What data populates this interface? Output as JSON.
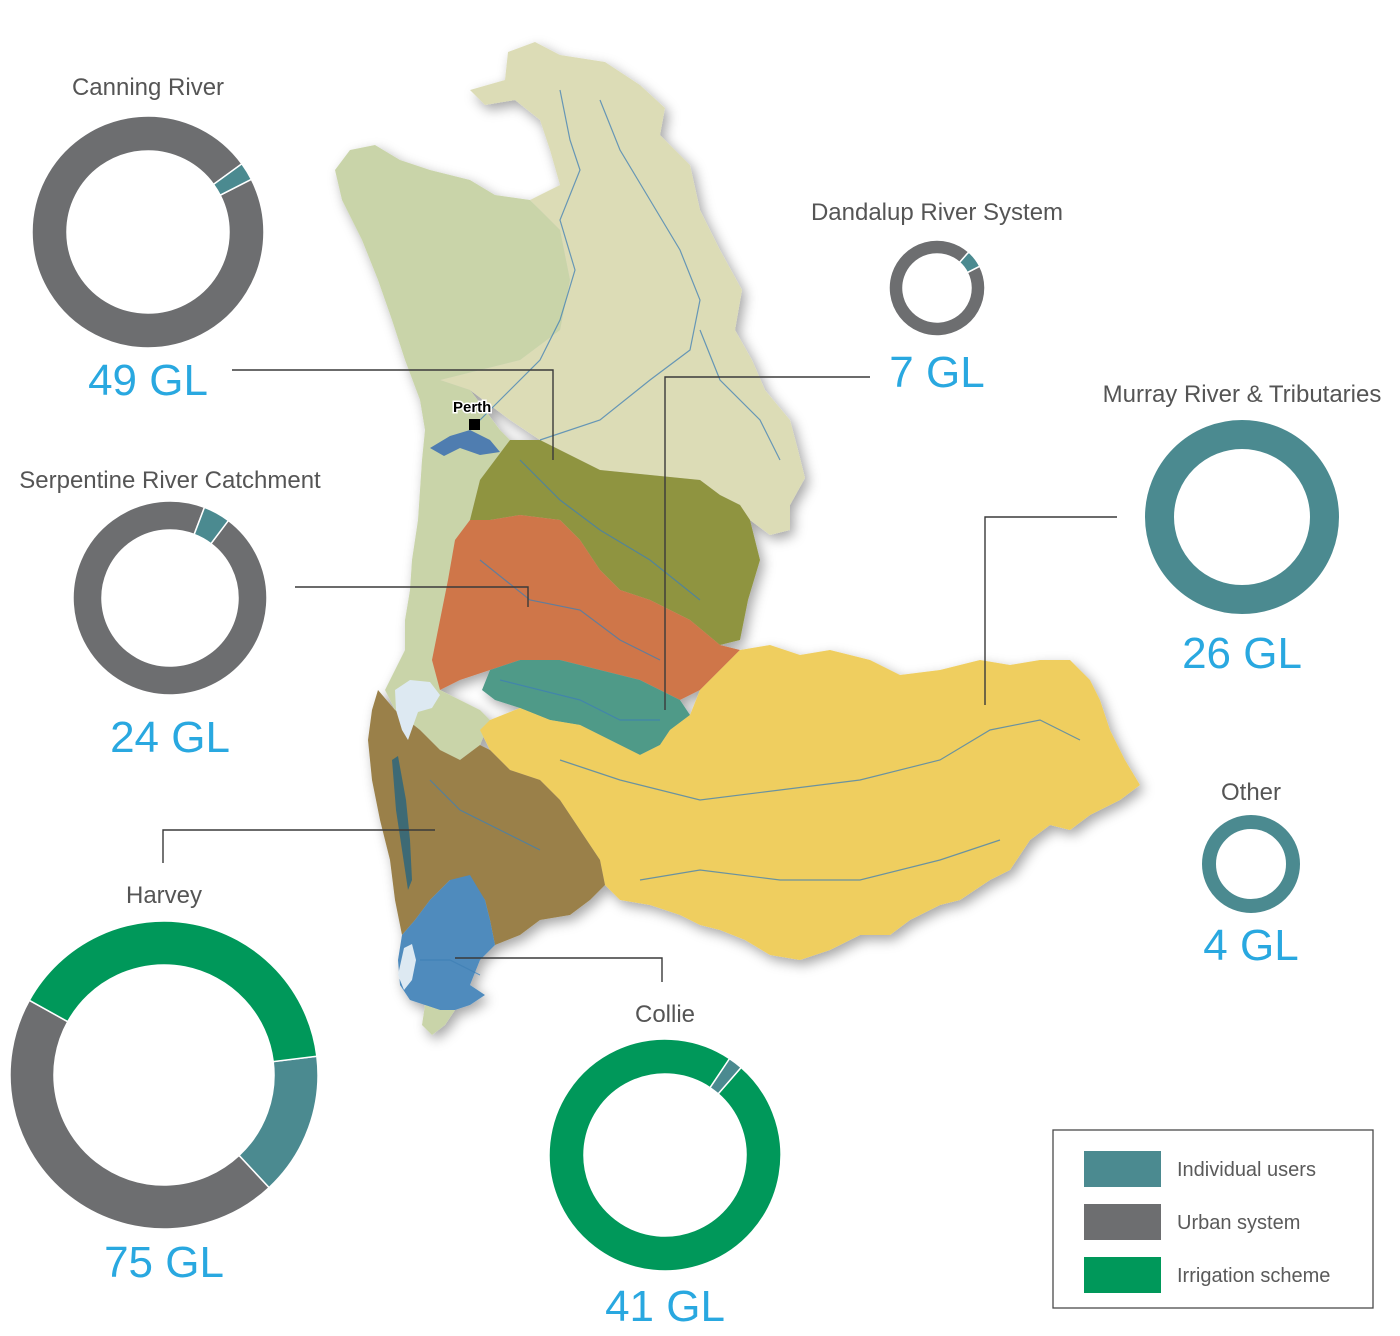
{
  "map": {
    "city_label": "Perth",
    "catchments": [
      {
        "name": "canning",
        "color": "#dcdcb6"
      },
      {
        "name": "coastal-plain",
        "color": "#c9d4a9"
      },
      {
        "name": "serpentine-olive",
        "color": "#8f9440"
      },
      {
        "name": "serpentine-orange",
        "color": "#cf7648"
      },
      {
        "name": "dandalup",
        "color": "#4f9a88"
      },
      {
        "name": "murray",
        "color": "#efce5e"
      },
      {
        "name": "harvey",
        "color": "#9a804a"
      },
      {
        "name": "collie",
        "color": "#4f8bbd"
      }
    ]
  },
  "colors": {
    "individual_users": "#4b8a90",
    "urban_system": "#6d6e70",
    "irrigation_scheme": "#00985a",
    "total_text": "#29a8e0"
  },
  "legend": {
    "items": [
      {
        "label": "Individual users",
        "color": "#4b8a90"
      },
      {
        "label": "Urban system",
        "color": "#6d6e70"
      },
      {
        "label": "Irrigation scheme",
        "color": "#00985a"
      }
    ]
  },
  "chart_data": [
    {
      "type": "pie",
      "title": "Canning River",
      "total_label": "49 GL",
      "slices": [
        {
          "name": "Urban system",
          "value": 0.975
        },
        {
          "name": "Individual users",
          "value": 0.025
        }
      ]
    },
    {
      "type": "pie",
      "title": "Dandalup River System",
      "total_label": "7 GL",
      "slices": [
        {
          "name": "Urban system",
          "value": 0.94
        },
        {
          "name": "Individual users",
          "value": 0.06
        }
      ]
    },
    {
      "type": "pie",
      "title": "Murray River & Tributaries",
      "total_label": "26 GL",
      "slices": [
        {
          "name": "Individual users",
          "value": 1.0
        }
      ]
    },
    {
      "type": "pie",
      "title": "Serpentine River Catchment",
      "total_label": "24 GL",
      "slices": [
        {
          "name": "Urban system",
          "value": 0.955
        },
        {
          "name": "Individual users",
          "value": 0.045
        }
      ]
    },
    {
      "type": "pie",
      "title": "Other",
      "total_label": "4 GL",
      "slices": [
        {
          "name": "Individual users",
          "value": 1.0
        }
      ]
    },
    {
      "type": "pie",
      "title": "Harvey",
      "total_label": "75 GL",
      "slices": [
        {
          "name": "Individual users",
          "value": 0.15
        },
        {
          "name": "Urban system",
          "value": 0.45
        },
        {
          "name": "Irrigation scheme",
          "value": 0.4
        }
      ]
    },
    {
      "type": "pie",
      "title": "Collie",
      "total_label": "41 GL",
      "slices": [
        {
          "name": "Irrigation scheme",
          "value": 0.98
        },
        {
          "name": "Individual users",
          "value": 0.02
        }
      ]
    }
  ]
}
